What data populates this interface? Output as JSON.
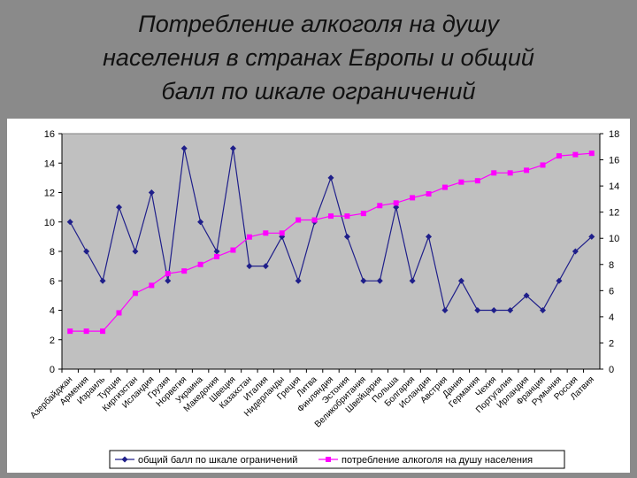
{
  "title": {
    "lines": [
      "Потребление алкоголя на душу",
      "населения в странах Европы и общий",
      "балл по шкале ограничений"
    ]
  },
  "colors": {
    "slide_background": "#8a8a8a",
    "panel_background": "#ffffff",
    "plot_background": "#c0c0c0",
    "series_score": "#1f1f8a",
    "series_alcohol": "#ff00ff"
  },
  "chart_data": {
    "type": "line",
    "title": "Потребление алкоголя на душу населения в странах Европы и общий балл по шкале ограничений",
    "categories": [
      "Азербайджан",
      "Армения",
      "Израиль",
      "Турция",
      "Киргизстан",
      "Исландия",
      "Грузия",
      "Норвегия",
      "Украина",
      "Македония",
      "Швеция",
      "Казахстан",
      "Италия",
      "Нидерланды",
      "Греция",
      "Литва",
      "Финляндия",
      "Эстония",
      "Великобритания",
      "Швейцария",
      "Польша",
      "Болгария",
      "Исландия",
      "Австрия",
      "Дания",
      "Германия",
      "Чехия",
      "Португалия",
      "Ирландия",
      "Франция",
      "Румыния",
      "Россия",
      "Латвия"
    ],
    "series": [
      {
        "name": "общий балл по шкале ограничений",
        "axis": "left",
        "marker": "diamond",
        "values": [
          10,
          8,
          6,
          11,
          8,
          12,
          6,
          15,
          10,
          8,
          15,
          7,
          7,
          9,
          6,
          10,
          13,
          9,
          6,
          6,
          11,
          6,
          9,
          4,
          6,
          4,
          4,
          4,
          5,
          4,
          6,
          8,
          9
        ]
      },
      {
        "name": "потребление алкоголя на душу населения",
        "axis": "right",
        "marker": "square",
        "values": [
          2.9,
          2.9,
          2.9,
          4.3,
          5.8,
          6.4,
          7.3,
          7.5,
          8.0,
          8.6,
          9.1,
          10.1,
          10.4,
          10.4,
          11.4,
          11.4,
          11.7,
          11.7,
          11.9,
          12.5,
          12.7,
          13.1,
          13.4,
          13.9,
          14.3,
          14.4,
          15.0,
          15.0,
          15.2,
          15.6,
          16.3,
          16.4,
          16.5
        ]
      }
    ],
    "y_left": {
      "min": 0,
      "max": 16,
      "ticks": [
        0,
        2,
        4,
        6,
        8,
        10,
        12,
        14,
        16
      ]
    },
    "y_right": {
      "min": 0,
      "max": 18,
      "ticks": [
        0,
        2,
        4,
        6,
        8,
        10,
        12,
        14,
        16,
        18
      ]
    },
    "grid": false,
    "legend_position": "bottom"
  }
}
